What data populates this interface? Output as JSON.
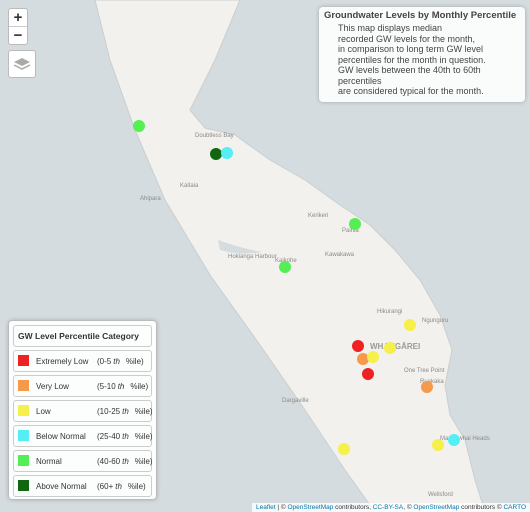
{
  "zoom": {
    "in": "+",
    "out": "−"
  },
  "info": {
    "title": "Groundwater Levels by Monthly Percentile",
    "lines": [
      "This map displays median",
      "recorded GW levels for the month,",
      "in comparison to long term GW level",
      "percentiles for the month in question.",
      "GW levels between the 40th to 60th percentiles",
      "are considered typical for the month."
    ]
  },
  "legend": {
    "title": "GW Level Percentile Category",
    "items": [
      {
        "label": "Extremely Low",
        "range": "(0-5",
        "ordinal": "th",
        "unit": "%ile)",
        "color": "#ee2222"
      },
      {
        "label": "Very Low",
        "range": "(5-10",
        "ordinal": "th",
        "unit": "%ile)",
        "color": "#f59a4a"
      },
      {
        "label": "Low",
        "range": "(10-25",
        "ordinal": "th",
        "unit": "%ile)",
        "color": "#f5f04a"
      },
      {
        "label": "Below Normal",
        "range": "(25-40",
        "ordinal": "th",
        "unit": "%ile)",
        "color": "#55eef5"
      },
      {
        "label": "Normal",
        "range": "(40-60",
        "ordinal": "th",
        "unit": "%ile)",
        "color": "#55ee55"
      },
      {
        "label": "Above Normal",
        "range": "(60+",
        "ordinal": "th",
        "unit": "%ile)",
        "color": "#116611"
      }
    ]
  },
  "places": [
    "Doubtless Bay",
    "Kaitaia",
    "Ahipara",
    "Kerikeri",
    "Paihia",
    "Kawakawa",
    "Kaikohe",
    "Hokianga Harbour",
    "Hikurangi",
    "Ngunguru",
    "WHANGĀREI",
    "One Tree Point",
    "Ruakaka",
    "Dargaville",
    "Mangawhai Heads",
    "Wellsford"
  ],
  "attribution": {
    "leaflet": "Leaflet",
    "part1": "| © ",
    "osm1": "OpenStreetMap",
    "part2": " contributors, ",
    "license": "CC-BY-SA",
    "part3": ", © ",
    "osm2": "OpenStreetMap",
    "part4": " contributors © ",
    "carto": "CARTO"
  }
}
